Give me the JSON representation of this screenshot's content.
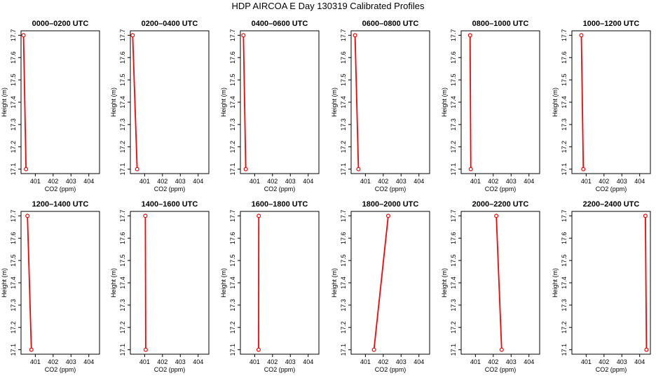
{
  "figure": {
    "title": "HDP AIRCOA E  Day 130319  Calibrated Profiles",
    "line_color": "#ff0000",
    "marker_color": "#ff0000"
  },
  "chart_data": [
    {
      "type": "line",
      "title": "0000–0200 UTC",
      "xlabel": "CO2 (ppm)",
      "ylabel": "Height (m)",
      "xlim": [
        400.2,
        404.6
      ],
      "ylim": [
        17.08,
        17.72
      ],
      "xticks": [
        401,
        402,
        403,
        404
      ],
      "yticks": [
        17.1,
        17.2,
        17.3,
        17.4,
        17.5,
        17.6,
        17.7
      ],
      "points": [
        {
          "x": 400.34,
          "y": 17.7
        },
        {
          "x": 400.48,
          "y": 17.1
        }
      ]
    },
    {
      "type": "line",
      "title": "0200–0400 UTC",
      "xlabel": "CO2 (ppm)",
      "ylabel": "Height (m)",
      "xlim": [
        400.2,
        404.6
      ],
      "ylim": [
        17.08,
        17.72
      ],
      "xticks": [
        401,
        402,
        403,
        404
      ],
      "yticks": [
        17.1,
        17.2,
        17.3,
        17.4,
        17.5,
        17.6,
        17.7
      ],
      "points": [
        {
          "x": 400.33,
          "y": 17.7
        },
        {
          "x": 400.58,
          "y": 17.1
        }
      ]
    },
    {
      "type": "line",
      "title": "0400–0600 UTC",
      "xlabel": "CO2 (ppm)",
      "ylabel": "Height (m)",
      "xlim": [
        400.2,
        404.6
      ],
      "ylim": [
        17.08,
        17.72
      ],
      "xticks": [
        401,
        402,
        403,
        404
      ],
      "yticks": [
        17.1,
        17.2,
        17.3,
        17.4,
        17.5,
        17.6,
        17.7
      ],
      "points": [
        {
          "x": 400.37,
          "y": 17.7
        },
        {
          "x": 400.5,
          "y": 17.1
        }
      ]
    },
    {
      "type": "line",
      "title": "0600–0800 UTC",
      "xlabel": "CO2 (ppm)",
      "ylabel": "Height (m)",
      "xlim": [
        400.2,
        404.6
      ],
      "ylim": [
        17.08,
        17.72
      ],
      "xticks": [
        401,
        402,
        403,
        404
      ],
      "yticks": [
        17.1,
        17.2,
        17.3,
        17.4,
        17.5,
        17.6,
        17.7
      ],
      "points": [
        {
          "x": 400.42,
          "y": 17.7
        },
        {
          "x": 400.61,
          "y": 17.1
        }
      ]
    },
    {
      "type": "line",
      "title": "0800–1000 UTC",
      "xlabel": "CO2 (ppm)",
      "ylabel": "Height (m)",
      "xlim": [
        400.2,
        404.6
      ],
      "ylim": [
        17.08,
        17.72
      ],
      "xticks": [
        401,
        402,
        403,
        404
      ],
      "yticks": [
        17.1,
        17.2,
        17.3,
        17.4,
        17.5,
        17.6,
        17.7
      ],
      "points": [
        {
          "x": 400.7,
          "y": 17.7
        },
        {
          "x": 400.74,
          "y": 17.1
        }
      ]
    },
    {
      "type": "line",
      "title": "1000–1200 UTC",
      "xlabel": "CO2 (ppm)",
      "ylabel": "Height (m)",
      "xlim": [
        400.2,
        404.6
      ],
      "ylim": [
        17.08,
        17.72
      ],
      "xticks": [
        401,
        402,
        403,
        404
      ],
      "yticks": [
        17.1,
        17.2,
        17.3,
        17.4,
        17.5,
        17.6,
        17.7
      ],
      "points": [
        {
          "x": 400.73,
          "y": 17.7
        },
        {
          "x": 400.84,
          "y": 17.1
        }
      ]
    },
    {
      "type": "line",
      "title": "1200–1400 UTC",
      "xlabel": "CO2 (ppm)",
      "ylabel": "Height (m)",
      "xlim": [
        400.2,
        404.6
      ],
      "ylim": [
        17.08,
        17.72
      ],
      "xticks": [
        401,
        402,
        403,
        404
      ],
      "yticks": [
        17.1,
        17.2,
        17.3,
        17.4,
        17.5,
        17.6,
        17.7
      ],
      "points": [
        {
          "x": 400.56,
          "y": 17.7
        },
        {
          "x": 400.78,
          "y": 17.1
        }
      ]
    },
    {
      "type": "line",
      "title": "1400–1600 UTC",
      "xlabel": "CO2 (ppm)",
      "ylabel": "Height (m)",
      "xlim": [
        400.2,
        404.6
      ],
      "ylim": [
        17.08,
        17.72
      ],
      "xticks": [
        401,
        402,
        403,
        404
      ],
      "yticks": [
        17.1,
        17.2,
        17.3,
        17.4,
        17.5,
        17.6,
        17.7
      ],
      "points": [
        {
          "x": 401.04,
          "y": 17.7
        },
        {
          "x": 401.06,
          "y": 17.1
        }
      ]
    },
    {
      "type": "line",
      "title": "1600–1800 UTC",
      "xlabel": "CO2 (ppm)",
      "ylabel": "Height (m)",
      "xlim": [
        400.2,
        404.6
      ],
      "ylim": [
        17.08,
        17.72
      ],
      "xticks": [
        401,
        402,
        403,
        404
      ],
      "yticks": [
        17.1,
        17.2,
        17.3,
        17.4,
        17.5,
        17.6,
        17.7
      ],
      "points": [
        {
          "x": 401.23,
          "y": 17.7
        },
        {
          "x": 401.22,
          "y": 17.1
        }
      ]
    },
    {
      "type": "line",
      "title": "1800–2000 UTC",
      "xlabel": "CO2 (ppm)",
      "ylabel": "Height (m)",
      "xlim": [
        400.2,
        404.6
      ],
      "ylim": [
        17.08,
        17.72
      ],
      "xticks": [
        401,
        402,
        403,
        404
      ],
      "yticks": [
        17.1,
        17.2,
        17.3,
        17.4,
        17.5,
        17.6,
        17.7
      ],
      "points": [
        {
          "x": 402.28,
          "y": 17.7
        },
        {
          "x": 401.48,
          "y": 17.1
        }
      ]
    },
    {
      "type": "line",
      "title": "2000–2200 UTC",
      "xlabel": "CO2 (ppm)",
      "ylabel": "Height (m)",
      "xlim": [
        400.2,
        404.6
      ],
      "ylim": [
        17.08,
        17.72
      ],
      "xticks": [
        401,
        402,
        403,
        404
      ],
      "yticks": [
        17.1,
        17.2,
        17.3,
        17.4,
        17.5,
        17.6,
        17.7
      ],
      "points": [
        {
          "x": 402.17,
          "y": 17.7
        },
        {
          "x": 402.47,
          "y": 17.1
        }
      ]
    },
    {
      "type": "line",
      "title": "2200–2400 UTC",
      "xlabel": "CO2 (ppm)",
      "ylabel": "Height (m)",
      "xlim": [
        400.2,
        404.6
      ],
      "ylim": [
        17.08,
        17.72
      ],
      "xticks": [
        401,
        402,
        403,
        404
      ],
      "yticks": [
        17.1,
        17.2,
        17.3,
        17.4,
        17.5,
        17.6,
        17.7
      ],
      "points": [
        {
          "x": 404.32,
          "y": 17.7
        },
        {
          "x": 404.38,
          "y": 17.1
        }
      ]
    }
  ]
}
